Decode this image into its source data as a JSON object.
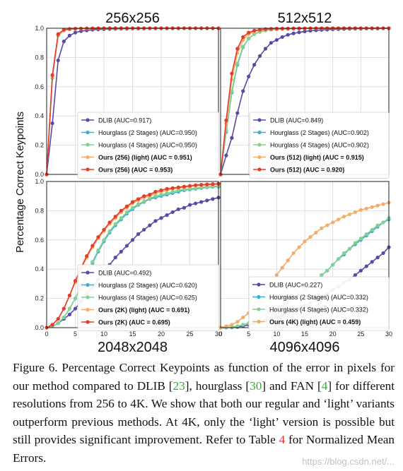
{
  "figure": {
    "ylabel": "Percentage Correct Keypoints",
    "panel_titles": {
      "top_left": "256x256",
      "top_right": "512x512",
      "bottom_left": "2048x2048",
      "bottom_right": "4096x4096"
    },
    "colors": {
      "dlib": "#5a48a8",
      "hg2": "#39b0d6",
      "hg4": "#86cf92",
      "light": "#f2ad67",
      "ours": "#e63b2b"
    }
  },
  "caption": {
    "part1": "Figure 6. Percentage Correct Keypoints as function of the error in pixels for our method compared to DLIB [",
    "ref1": "23",
    "part2": "], hourglass [",
    "ref2": "30",
    "part3": "] and FAN [",
    "ref3": "4",
    "part4": "] for different resolutions from 256 to 4K. We show that both our regular and ‘light’ variants outperform previous methods. At 4K, only the ‘light’ version is possible but still provides significant improvement. Refer to Table ",
    "ref4": "4",
    "part5": " for Normalized Mean Errors."
  },
  "watermark": "https://blog.csdn.net/...",
  "chart_data": [
    {
      "type": "line",
      "title": "256x256",
      "xlabel": "",
      "ylabel": "Percentage Correct Keypoints",
      "xlim": [
        0,
        30
      ],
      "ylim": [
        0,
        1
      ],
      "x_ticks": [
        0,
        5,
        10,
        15,
        20,
        25,
        30
      ],
      "y_ticks": [
        0.0,
        0.2,
        0.4,
        0.6,
        0.8,
        1.0
      ],
      "grid": true,
      "legend_position": "lower-right",
      "x": [
        0,
        1,
        2,
        3,
        4,
        5,
        6,
        7,
        8,
        9,
        10,
        11,
        12,
        13,
        14,
        15,
        16,
        17,
        18,
        19,
        20,
        21,
        22,
        23,
        24,
        25,
        26,
        27,
        28,
        29,
        30
      ],
      "series": [
        {
          "name": "DLIB (AUC=0.917)",
          "color": "#5a48a8",
          "bold": false,
          "values": [
            0,
            0.35,
            0.78,
            0.91,
            0.95,
            0.97,
            0.98,
            0.985,
            0.99,
            0.992,
            0.994,
            0.995,
            0.996,
            0.997,
            0.997,
            0.998,
            0.998,
            0.998,
            0.999,
            0.999,
            0.999,
            0.999,
            0.999,
            0.999,
            1,
            1,
            1,
            1,
            1,
            1,
            1
          ]
        },
        {
          "name": "Hourglass (2 Stages) (AUC=0.950)",
          "color": "#39b0d6",
          "bold": false,
          "values": [
            0,
            0.66,
            0.95,
            0.985,
            0.993,
            0.996,
            0.997,
            0.998,
            0.999,
            0.999,
            0.999,
            1,
            1,
            1,
            1,
            1,
            1,
            1,
            1,
            1,
            1,
            1,
            1,
            1,
            1,
            1,
            1,
            1,
            1,
            1,
            1
          ]
        },
        {
          "name": "Hourglass (4 Stages) (AUC=0.950)",
          "color": "#86cf92",
          "bold": false,
          "values": [
            0,
            0.66,
            0.95,
            0.985,
            0.993,
            0.996,
            0.997,
            0.998,
            0.999,
            0.999,
            0.999,
            1,
            1,
            1,
            1,
            1,
            1,
            1,
            1,
            1,
            1,
            1,
            1,
            1,
            1,
            1,
            1,
            1,
            1,
            1,
            1
          ]
        },
        {
          "name": "Ours (256) (light) (AUC = 0.951)",
          "color": "#f2ad67",
          "bold": true,
          "values": [
            0,
            0.67,
            0.955,
            0.987,
            0.994,
            0.997,
            0.998,
            0.998,
            0.999,
            0.999,
            1,
            1,
            1,
            1,
            1,
            1,
            1,
            1,
            1,
            1,
            1,
            1,
            1,
            1,
            1,
            1,
            1,
            1,
            1,
            1,
            1
          ]
        },
        {
          "name": "Ours (256) (AUC = 0.953)",
          "color": "#e63b2b",
          "bold": true,
          "values": [
            0,
            0.68,
            0.96,
            0.99,
            0.995,
            0.997,
            0.998,
            0.999,
            0.999,
            1,
            1,
            1,
            1,
            1,
            1,
            1,
            1,
            1,
            1,
            1,
            1,
            1,
            1,
            1,
            1,
            1,
            1,
            1,
            1,
            1,
            1
          ]
        }
      ]
    },
    {
      "type": "line",
      "title": "512x512",
      "xlabel": "",
      "ylabel": "",
      "xlim": [
        0,
        30
      ],
      "ylim": [
        0,
        1
      ],
      "x_ticks": [
        0,
        5,
        10,
        15,
        20,
        25,
        30
      ],
      "y_ticks": [
        0.0,
        0.2,
        0.4,
        0.6,
        0.8,
        1.0
      ],
      "grid": true,
      "legend_position": "lower-right",
      "x": [
        0,
        1,
        2,
        3,
        4,
        5,
        6,
        7,
        8,
        9,
        10,
        11,
        12,
        13,
        14,
        15,
        16,
        17,
        18,
        19,
        20,
        21,
        22,
        23,
        24,
        25,
        26,
        27,
        28,
        29,
        30
      ],
      "series": [
        {
          "name": "DLIB (AUC=0.849)",
          "color": "#5a48a8",
          "bold": false,
          "values": [
            0,
            0.13,
            0.25,
            0.42,
            0.57,
            0.67,
            0.75,
            0.81,
            0.86,
            0.9,
            0.92,
            0.94,
            0.955,
            0.965,
            0.972,
            0.978,
            0.983,
            0.986,
            0.989,
            0.991,
            0.993,
            0.994,
            0.995,
            0.996,
            0.997,
            0.997,
            0.998,
            0.998,
            0.998,
            0.999,
            0.999
          ]
        },
        {
          "name": "Hourglass (2 Stages) (AUC=0.902)",
          "color": "#39b0d6",
          "bold": false,
          "values": [
            0,
            0.29,
            0.56,
            0.75,
            0.87,
            0.93,
            0.96,
            0.975,
            0.985,
            0.99,
            0.993,
            0.995,
            0.996,
            0.997,
            0.998,
            0.998,
            0.999,
            0.999,
            0.999,
            1,
            1,
            1,
            1,
            1,
            1,
            1,
            1,
            1,
            1,
            1,
            1
          ]
        },
        {
          "name": "Hourglass (4 Stages) (AUC=0.902)",
          "color": "#86cf92",
          "bold": false,
          "values": [
            0,
            0.3,
            0.57,
            0.76,
            0.875,
            0.93,
            0.96,
            0.975,
            0.985,
            0.99,
            0.993,
            0.995,
            0.996,
            0.997,
            0.998,
            0.998,
            0.999,
            0.999,
            0.999,
            1,
            1,
            1,
            1,
            1,
            1,
            1,
            1,
            1,
            1,
            1,
            1
          ]
        },
        {
          "name": "Ours (512) (light) (AUC = 0.915)",
          "color": "#f2ad67",
          "bold": true,
          "values": [
            0,
            0.35,
            0.65,
            0.83,
            0.92,
            0.96,
            0.978,
            0.987,
            0.992,
            0.995,
            0.996,
            0.997,
            0.998,
            0.998,
            0.999,
            0.999,
            0.999,
            1,
            1,
            1,
            1,
            1,
            1,
            1,
            1,
            1,
            1,
            1,
            1,
            1,
            1
          ]
        },
        {
          "name": "Ours (512) (AUC = 0.920)",
          "color": "#e63b2b",
          "bold": true,
          "values": [
            0,
            0.37,
            0.69,
            0.86,
            0.94,
            0.97,
            0.984,
            0.99,
            0.994,
            0.996,
            0.997,
            0.998,
            0.998,
            0.999,
            0.999,
            0.999,
            1,
            1,
            1,
            1,
            1,
            1,
            1,
            1,
            1,
            1,
            1,
            1,
            1,
            1,
            1
          ]
        }
      ]
    },
    {
      "type": "line",
      "title": "2048x2048",
      "xlabel": "",
      "ylabel": "",
      "xlim": [
        0,
        30
      ],
      "ylim": [
        0,
        1
      ],
      "x_ticks": [
        0,
        5,
        10,
        15,
        20,
        25,
        30
      ],
      "y_ticks": [
        0.0,
        0.2,
        0.4,
        0.6,
        0.8,
        1.0
      ],
      "grid": true,
      "legend_position": "lower-right",
      "x": [
        0,
        1,
        2,
        3,
        4,
        5,
        6,
        7,
        8,
        9,
        10,
        11,
        12,
        13,
        14,
        15,
        16,
        17,
        18,
        19,
        20,
        21,
        22,
        23,
        24,
        25,
        26,
        27,
        28,
        29,
        30
      ],
      "series": [
        {
          "name": "DLIB (AUC=0.492)",
          "color": "#5a48a8",
          "bold": false,
          "values": [
            0,
            0.01,
            0.03,
            0.06,
            0.09,
            0.13,
            0.18,
            0.23,
            0.28,
            0.33,
            0.38,
            0.43,
            0.48,
            0.52,
            0.56,
            0.6,
            0.64,
            0.67,
            0.7,
            0.73,
            0.75,
            0.77,
            0.79,
            0.81,
            0.82,
            0.84,
            0.85,
            0.86,
            0.87,
            0.88,
            0.89
          ]
        },
        {
          "name": "Hourglass (2 Stages) (AUC=0.620)",
          "color": "#39b0d6",
          "bold": false,
          "values": [
            0,
            0.01,
            0.03,
            0.07,
            0.13,
            0.2,
            0.28,
            0.36,
            0.44,
            0.52,
            0.59,
            0.65,
            0.7,
            0.74,
            0.78,
            0.81,
            0.84,
            0.86,
            0.88,
            0.89,
            0.9,
            0.91,
            0.92,
            0.93,
            0.94,
            0.945,
            0.95,
            0.955,
            0.96,
            0.963,
            0.965
          ]
        },
        {
          "name": "Hourglass (4 Stages) (AUC=0.625)",
          "color": "#86cf92",
          "bold": false,
          "values": [
            0,
            0.01,
            0.03,
            0.07,
            0.13,
            0.2,
            0.29,
            0.37,
            0.45,
            0.53,
            0.6,
            0.66,
            0.71,
            0.75,
            0.79,
            0.82,
            0.845,
            0.865,
            0.885,
            0.9,
            0.91,
            0.92,
            0.93,
            0.94,
            0.945,
            0.95,
            0.955,
            0.96,
            0.963,
            0.966,
            0.968
          ]
        },
        {
          "name": "Ours (2K) (light) (AUC = 0.691)",
          "color": "#f2ad67",
          "bold": true,
          "values": [
            0,
            0.02,
            0.06,
            0.13,
            0.22,
            0.31,
            0.4,
            0.48,
            0.55,
            0.61,
            0.66,
            0.71,
            0.75,
            0.79,
            0.82,
            0.85,
            0.87,
            0.89,
            0.9,
            0.92,
            0.93,
            0.94,
            0.95,
            0.955,
            0.96,
            0.965,
            0.97,
            0.973,
            0.976,
            0.978,
            0.98
          ]
        },
        {
          "name": "Ours (2K) (AUC = 0.695)",
          "color": "#e63b2b",
          "bold": true,
          "values": [
            0,
            0.02,
            0.06,
            0.13,
            0.22,
            0.32,
            0.41,
            0.49,
            0.56,
            0.62,
            0.67,
            0.72,
            0.76,
            0.8,
            0.83,
            0.86,
            0.88,
            0.9,
            0.91,
            0.93,
            0.94,
            0.95,
            0.955,
            0.96,
            0.965,
            0.97,
            0.975,
            0.978,
            0.98,
            0.982,
            0.985
          ]
        }
      ]
    },
    {
      "type": "line",
      "title": "4096x4096",
      "xlabel": "",
      "ylabel": "",
      "xlim": [
        0,
        30
      ],
      "ylim": [
        0,
        1
      ],
      "x_ticks": [
        0,
        5,
        10,
        15,
        20,
        25,
        30
      ],
      "y_ticks": [
        0.0,
        0.2,
        0.4,
        0.6,
        0.8,
        1.0
      ],
      "grid": true,
      "legend_position": "lower-center",
      "x": [
        0,
        1,
        2,
        3,
        4,
        5,
        6,
        7,
        8,
        9,
        10,
        11,
        12,
        13,
        14,
        15,
        16,
        17,
        18,
        19,
        20,
        21,
        22,
        23,
        24,
        25,
        26,
        27,
        28,
        29,
        30
      ],
      "series": [
        {
          "name": "DLIB (AUC=0.227)",
          "color": "#5a48a8",
          "bold": false,
          "values": [
            0,
            0,
            0.002,
            0.005,
            0.01,
            0.02,
            0.03,
            0.04,
            0.05,
            0.06,
            0.07,
            0.085,
            0.1,
            0.115,
            0.13,
            0.15,
            0.17,
            0.19,
            0.21,
            0.23,
            0.26,
            0.28,
            0.31,
            0.33,
            0.36,
            0.39,
            0.42,
            0.45,
            0.48,
            0.51,
            0.55
          ]
        },
        {
          "name": "Hourglass (2 Stages) (AUC=0.332)",
          "color": "#39b0d6",
          "bold": false,
          "values": [
            0,
            0,
            0.005,
            0.01,
            0.02,
            0.03,
            0.05,
            0.07,
            0.09,
            0.11,
            0.13,
            0.15,
            0.18,
            0.2,
            0.23,
            0.26,
            0.29,
            0.32,
            0.36,
            0.39,
            0.43,
            0.47,
            0.5,
            0.54,
            0.57,
            0.6,
            0.63,
            0.66,
            0.69,
            0.72,
            0.74
          ]
        },
        {
          "name": "Hourglass (4 Stages) (AUC=0.332)",
          "color": "#86cf92",
          "bold": false,
          "values": [
            0,
            0,
            0.005,
            0.01,
            0.02,
            0.03,
            0.05,
            0.07,
            0.09,
            0.11,
            0.13,
            0.15,
            0.18,
            0.2,
            0.23,
            0.26,
            0.29,
            0.32,
            0.36,
            0.39,
            0.43,
            0.47,
            0.51,
            0.54,
            0.58,
            0.61,
            0.64,
            0.67,
            0.7,
            0.72,
            0.75
          ]
        },
        {
          "name": "Ours (4K) (light) (AUC = 0.459)",
          "color": "#f2ad67",
          "bold": true,
          "values": [
            0,
            0.01,
            0.02,
            0.04,
            0.07,
            0.1,
            0.14,
            0.19,
            0.24,
            0.3,
            0.36,
            0.41,
            0.46,
            0.51,
            0.55,
            0.59,
            0.62,
            0.65,
            0.68,
            0.7,
            0.72,
            0.74,
            0.76,
            0.775,
            0.79,
            0.805,
            0.815,
            0.825,
            0.835,
            0.845,
            0.855
          ]
        }
      ]
    }
  ]
}
